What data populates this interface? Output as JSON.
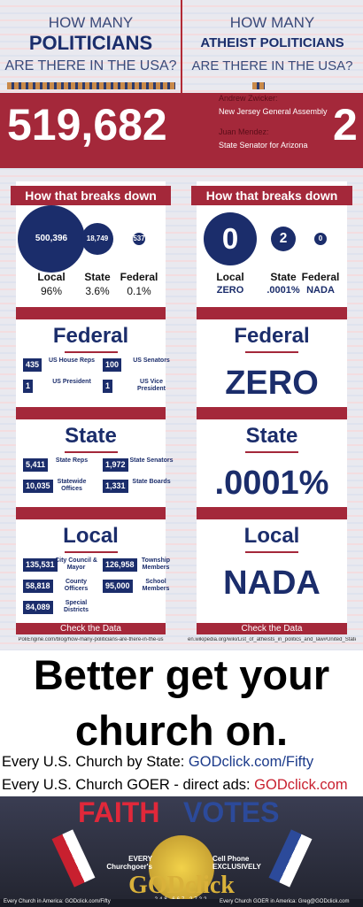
{
  "header": {
    "left": {
      "line1": "HOW MANY",
      "line2": "POLITICIANS",
      "line3": "ARE THERE IN THE USA?"
    },
    "right": {
      "line1": "HOW MANY",
      "line2": "ATHEIST POLITICIANS",
      "line3": "ARE THERE IN THE USA?"
    }
  },
  "totals": {
    "left": "519,682",
    "right": "2"
  },
  "atheists": [
    {
      "name": "Andrew Zwicker:",
      "office": "New Jersey General Assembly"
    },
    {
      "name": "Juan Mendez:",
      "office": "State Senator for Arizona"
    }
  ],
  "panels": [
    {
      "breakdown": {
        "title": "How that breaks down",
        "items": [
          {
            "value": "500,396",
            "label": "Local",
            "share": "96%"
          },
          {
            "value": "18,749",
            "label": "State",
            "share": "3.6%"
          },
          {
            "value": "537",
            "label": "Federal",
            "share": "0.1%"
          }
        ]
      },
      "sections": [
        {
          "title": "Federal",
          "items": [
            {
              "value": "435",
              "label": "US House Reps"
            },
            {
              "value": "100",
              "label": "US Senators"
            },
            {
              "value": "1",
              "label": "US President"
            },
            {
              "value": "1",
              "label": "US Vice President"
            }
          ]
        },
        {
          "title": "State",
          "items": [
            {
              "value": "5,411",
              "label": "State Reps"
            },
            {
              "value": "1,972",
              "label": "State Senators"
            },
            {
              "value": "10,035",
              "label": "Statewide Offices"
            },
            {
              "value": "1,331",
              "label": "State Boards"
            }
          ]
        },
        {
          "title": "Local",
          "items": [
            {
              "value": "135,531",
              "label": "City Council & Mayor"
            },
            {
              "value": "126,958",
              "label": "Township Members"
            },
            {
              "value": "58,818",
              "label": "County Officers"
            },
            {
              "value": "95,000",
              "label": "School Members"
            },
            {
              "value": "84,089",
              "label": "Special Districts"
            }
          ]
        }
      ],
      "button": "Check the Data",
      "source": "PoliEngine.com/blog/how-many-politicians-are-there-in-the-us"
    },
    {
      "breakdown": {
        "title": "How that breaks down",
        "items": [
          {
            "value": "0",
            "label": "Local",
            "share": "ZERO"
          },
          {
            "value": "2",
            "label": "State",
            "share": ".0001%"
          },
          {
            "value": "0",
            "label": "Federal",
            "share": "NADA"
          }
        ]
      },
      "sections": [
        {
          "title": "Federal",
          "text": "ZERO"
        },
        {
          "title": "State",
          "text": ".0001%"
        },
        {
          "title": "Local",
          "text": "NADA"
        }
      ],
      "button": "Check the Data",
      "source": "en.wikipedia.org/wiki/List_of_atheists_in_politics_and_law#United_States"
    }
  ],
  "slogan": {
    "lines": [
      "Better get your",
      "church on."
    ]
  },
  "links": [
    {
      "text": "Every U.S. Church by State: ",
      "link": "GODclick.com/Fifty"
    },
    {
      "text": "Every U.S. Church GOER - direct ads: ",
      "link": "GODclick.com"
    }
  ],
  "banner": {
    "faith": "FAITH",
    "votes": "VOTES",
    "left": "EVERY Churchgoer's",
    "right": "Cell Phone EXCLUSIVELY",
    "brand": "GODclick",
    "phone": "248 667 2722",
    "footer_left": "Every Church in America: GODclick.com/Fifty",
    "footer_right": "Every Church GOER in America: Greg@GODclick.com"
  }
}
